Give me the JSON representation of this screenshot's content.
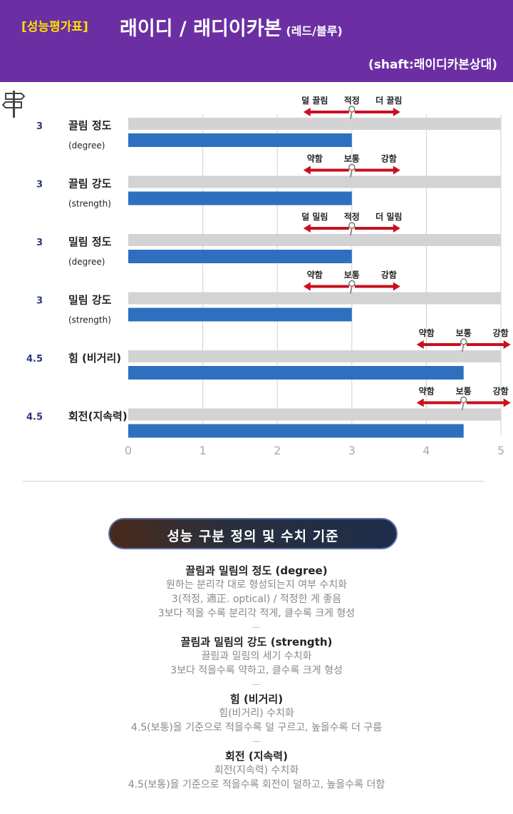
{
  "header": {
    "tag": "[성능평가표]",
    "title": "래이디 / 래디이카본",
    "title_small": "(레드/블루)",
    "shaft": "(shaft:래이디카본상대)"
  },
  "chart_data": {
    "type": "bar",
    "orientation": "horizontal",
    "xlim": [
      0,
      5
    ],
    "x_ticks": [
      "0",
      "1",
      "2",
      "3",
      "4",
      "5"
    ],
    "grid": true,
    "bar_color": "#2e6fbf",
    "bg_bar_color": "#d3d3d3",
    "arrow_color": "#c8101f",
    "rows": [
      {
        "score_label": "3",
        "name": "끌림 정도",
        "sub": "(degree)",
        "value": 3,
        "scale": [
          "덜 끌림",
          "적정",
          "더 끌림"
        ]
      },
      {
        "score_label": "3",
        "name": "끌림 강도",
        "sub": "(strength)",
        "value": 3,
        "scale": [
          "약함",
          "보통",
          "강함"
        ]
      },
      {
        "score_label": "3",
        "name": "밀림 정도",
        "sub": "(degree)",
        "value": 3,
        "scale": [
          "덜 밀림",
          "적정",
          "더 밀림"
        ]
      },
      {
        "score_label": "3",
        "name": "밀림 강도",
        "sub": "(strength)",
        "value": 3,
        "scale": [
          "약함",
          "보통",
          "강함"
        ]
      },
      {
        "score_label": "4.5",
        "name": "힘 (비거리)",
        "sub": "",
        "value": 4.5,
        "scale": [
          "약함",
          "보통",
          "강함"
        ]
      },
      {
        "score_label": "4.5",
        "name": "회전(지속력)",
        "sub": "",
        "value": 4.5,
        "scale": [
          "약함",
          "보통",
          "강함"
        ]
      }
    ]
  },
  "banner": {
    "label": "성능 구분 정의 및 수치 기준"
  },
  "definitions": [
    {
      "title": "끌림과 밀림의 정도 (degree)",
      "lines": [
        "원하는 분리각 대로 형성되는지 여부 수치화",
        "3(적정, 適正. optical) / 적정한 게 좋음",
        "3보다 적을 수록 분리각 적게, 클수록 크게 형성"
      ]
    },
    {
      "title": "끌림과 밀림의 강도 (strength)",
      "lines": [
        "끌림과 밀림의 세기 수치화",
        "3보다 적을수록 약하고, 클수록 크게 형성"
      ]
    },
    {
      "title": "힘 (비거리)",
      "lines": [
        "힘(비거리) 수치화",
        "4.5(보통)을 기준으로 적을수록 덜 구르고, 높을수록 더 구름"
      ]
    },
    {
      "title": "회전 (지속력)",
      "lines": [
        "회전(지속력) 수치화",
        "4.5(보통)을 기준으로 적을수록 회전이 덜하고, 높을수록 더함"
      ]
    }
  ],
  "separator": "—"
}
